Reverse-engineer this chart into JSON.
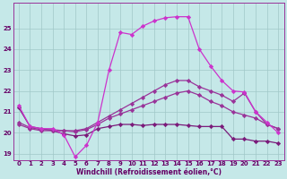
{
  "xlabel": "Windchill (Refroidissement éolien,°C)",
  "xlim": [
    -0.5,
    23.5
  ],
  "ylim": [
    18.7,
    26.2
  ],
  "yticks": [
    19,
    20,
    21,
    22,
    23,
    24,
    25
  ],
  "xticks": [
    0,
    1,
    2,
    3,
    4,
    5,
    6,
    7,
    8,
    9,
    10,
    11,
    12,
    13,
    14,
    15,
    16,
    17,
    18,
    19,
    20,
    21,
    22,
    23
  ],
  "bg_color": "#c5e8e8",
  "grid_color": "#a0c8c8",
  "line_color1": "#993399",
  "line_color2": "#cc33cc",
  "line_color3": "#993399",
  "line_color4": "#7a1a7a",
  "s1_x": [
    0,
    1,
    2,
    3,
    4,
    5,
    6,
    7,
    8,
    9,
    10,
    11,
    12,
    13,
    14,
    15,
    16,
    17,
    18,
    19,
    20,
    21,
    22,
    23
  ],
  "s1_y": [
    21.3,
    20.3,
    20.2,
    20.2,
    19.9,
    18.85,
    19.4,
    20.5,
    23.0,
    24.8,
    24.7,
    25.1,
    25.35,
    25.5,
    25.55,
    25.55,
    24.0,
    23.2,
    22.5,
    22.0,
    21.95,
    21.0,
    20.5,
    20.0
  ],
  "s2_x": [
    0,
    1,
    2,
    3,
    4,
    5,
    6,
    7,
    8,
    9,
    10,
    11,
    12,
    13,
    14,
    15,
    16,
    17,
    18,
    19,
    20,
    21,
    22,
    23
  ],
  "s2_y": [
    20.5,
    20.25,
    20.15,
    20.15,
    20.1,
    20.1,
    20.2,
    20.5,
    20.8,
    21.1,
    21.4,
    21.7,
    22.0,
    22.3,
    22.5,
    22.5,
    22.2,
    22.0,
    21.8,
    21.5,
    21.9,
    21.0,
    20.4,
    20.2
  ],
  "s3_x": [
    0,
    1,
    2,
    3,
    4,
    5,
    6,
    7,
    8,
    9,
    10,
    11,
    12,
    13,
    14,
    15,
    16,
    17,
    18,
    19,
    20,
    21,
    22,
    23
  ],
  "s3_y": [
    20.4,
    20.2,
    20.1,
    20.1,
    20.1,
    20.05,
    20.15,
    20.4,
    20.7,
    20.9,
    21.1,
    21.3,
    21.5,
    21.7,
    21.9,
    22.0,
    21.8,
    21.5,
    21.3,
    21.0,
    20.85,
    20.7,
    20.4,
    20.2
  ],
  "s4_x": [
    0,
    1,
    2,
    3,
    4,
    5,
    6,
    7,
    8,
    9,
    10,
    11,
    12,
    13,
    14,
    15,
    16,
    17,
    18,
    19,
    20,
    21,
    22,
    23
  ],
  "s4_y": [
    21.2,
    20.3,
    20.2,
    20.1,
    19.95,
    19.85,
    19.9,
    20.2,
    20.3,
    20.4,
    20.4,
    20.35,
    20.4,
    20.4,
    20.4,
    20.35,
    20.3,
    20.3,
    20.3,
    19.7,
    19.7,
    19.6,
    19.6,
    19.5
  ]
}
